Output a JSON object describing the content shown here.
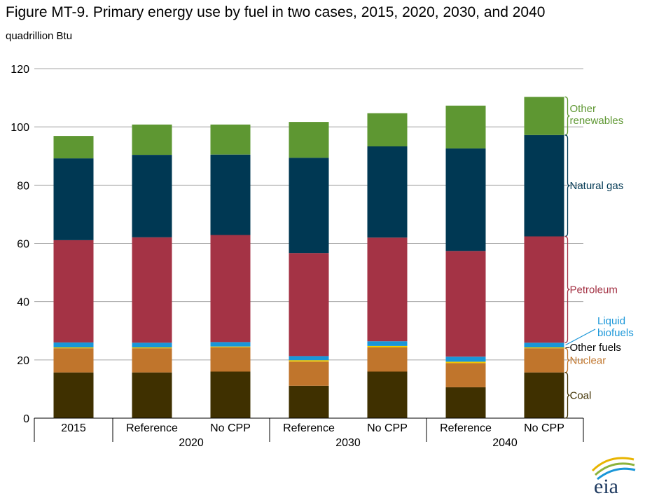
{
  "title": "Figure MT-9. Primary energy use by fuel in two cases, 2015, 2020, 2030, and 2040",
  "unit": "quadrillion Btu",
  "logo_text": "eia",
  "chart_data": {
    "type": "bar",
    "stacked": true,
    "ylim": [
      0,
      120
    ],
    "yticks": [
      0,
      20,
      40,
      60,
      80,
      100,
      120
    ],
    "grid": true,
    "categories": [
      "2015",
      "Reference",
      "No CPP",
      "Reference",
      "No CPP",
      "Reference",
      "No CPP"
    ],
    "groups": [
      {
        "label": "2020",
        "span": [
          1,
          2
        ]
      },
      {
        "label": "2030",
        "span": [
          3,
          4
        ]
      },
      {
        "label": "2040",
        "span": [
          5,
          6
        ]
      }
    ],
    "series": [
      {
        "name": "Coal",
        "color": "#3f3000",
        "values": [
          15.7,
          15.7,
          16.0,
          11.1,
          16.0,
          10.6,
          15.7
        ]
      },
      {
        "name": "Nuclear",
        "color": "#c0752c",
        "values": [
          8.3,
          8.3,
          8.3,
          8.3,
          8.3,
          8.3,
          8.3
        ]
      },
      {
        "name": "Other fuels",
        "color": "#f0c800",
        "values": [
          0.3,
          0.3,
          0.3,
          0.5,
          0.5,
          0.5,
          0.3
        ]
      },
      {
        "name": "Liquid biofuels",
        "color": "#1996d8",
        "values": [
          1.7,
          1.6,
          1.5,
          1.4,
          1.6,
          1.7,
          1.6
        ]
      },
      {
        "name": "Petroleum",
        "color": "#a43345",
        "values": [
          35.1,
          36.2,
          36.8,
          35.4,
          35.6,
          36.3,
          36.5
        ]
      },
      {
        "name": "Natural gas",
        "color": "#003853",
        "values": [
          28.1,
          28.3,
          27.6,
          32.7,
          31.3,
          35.2,
          34.8
        ]
      },
      {
        "name": "Other renewables",
        "color": "#5e9732",
        "values": [
          7.7,
          10.4,
          10.3,
          12.3,
          11.4,
          14.7,
          13.1
        ]
      }
    ],
    "labels": [
      {
        "text": [
          "Other",
          "renewables"
        ],
        "color": "#5e9732",
        "series": "Other renewables"
      },
      {
        "text": [
          "Natural gas"
        ],
        "color": "#003853",
        "series": "Natural gas"
      },
      {
        "text": [
          "Petroleum"
        ],
        "color": "#a43345",
        "series": "Petroleum"
      },
      {
        "text": [
          "Liquid",
          "biofuels"
        ],
        "color": "#1996d8",
        "series": "Liquid biofuels"
      },
      {
        "text": [
          "Other fuels"
        ],
        "color": "#000000",
        "series": "Other fuels"
      },
      {
        "text": [
          "Nuclear"
        ],
        "color": "#c0752c",
        "series": "Nuclear"
      },
      {
        "text": [
          "Coal"
        ],
        "color": "#3f3000",
        "series": "Coal"
      }
    ]
  }
}
